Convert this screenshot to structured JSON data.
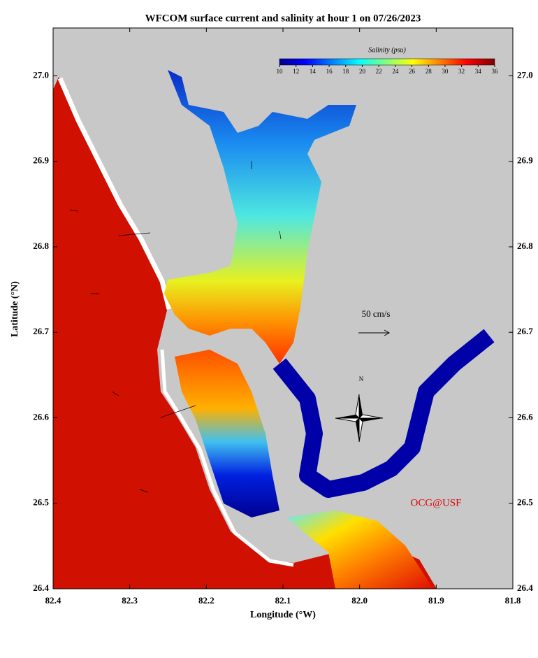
{
  "chart_data": {
    "type": "map",
    "title": "WFCOM surface current and salinity at hour 1 on 07/26/2023",
    "x_label": "Longitude (°W)",
    "y_label": "Latitude (°N)",
    "xlim": [
      82.4,
      81.8
    ],
    "xticks": [
      82.4,
      82.3,
      82.2,
      82.1,
      {
        "value": 82,
        "label": "82.0"
      },
      81.9,
      81.8
    ],
    "ylim": [
      26.4,
      27.056
    ],
    "yticks": [
      26.4,
      26.5,
      26.6,
      26.7,
      26.8,
      26.9,
      {
        "value": 27,
        "label": "27.0"
      }
    ],
    "colorbar": {
      "label": "Salinity (psu)",
      "lim": [
        10,
        36
      ],
      "ticks": [
        10,
        12,
        14,
        16,
        18,
        20,
        22,
        24,
        26,
        28,
        30,
        32,
        34,
        36
      ]
    },
    "scale_label": "50 cm/s",
    "north_label": "N",
    "credit": "OCG@USF"
  }
}
